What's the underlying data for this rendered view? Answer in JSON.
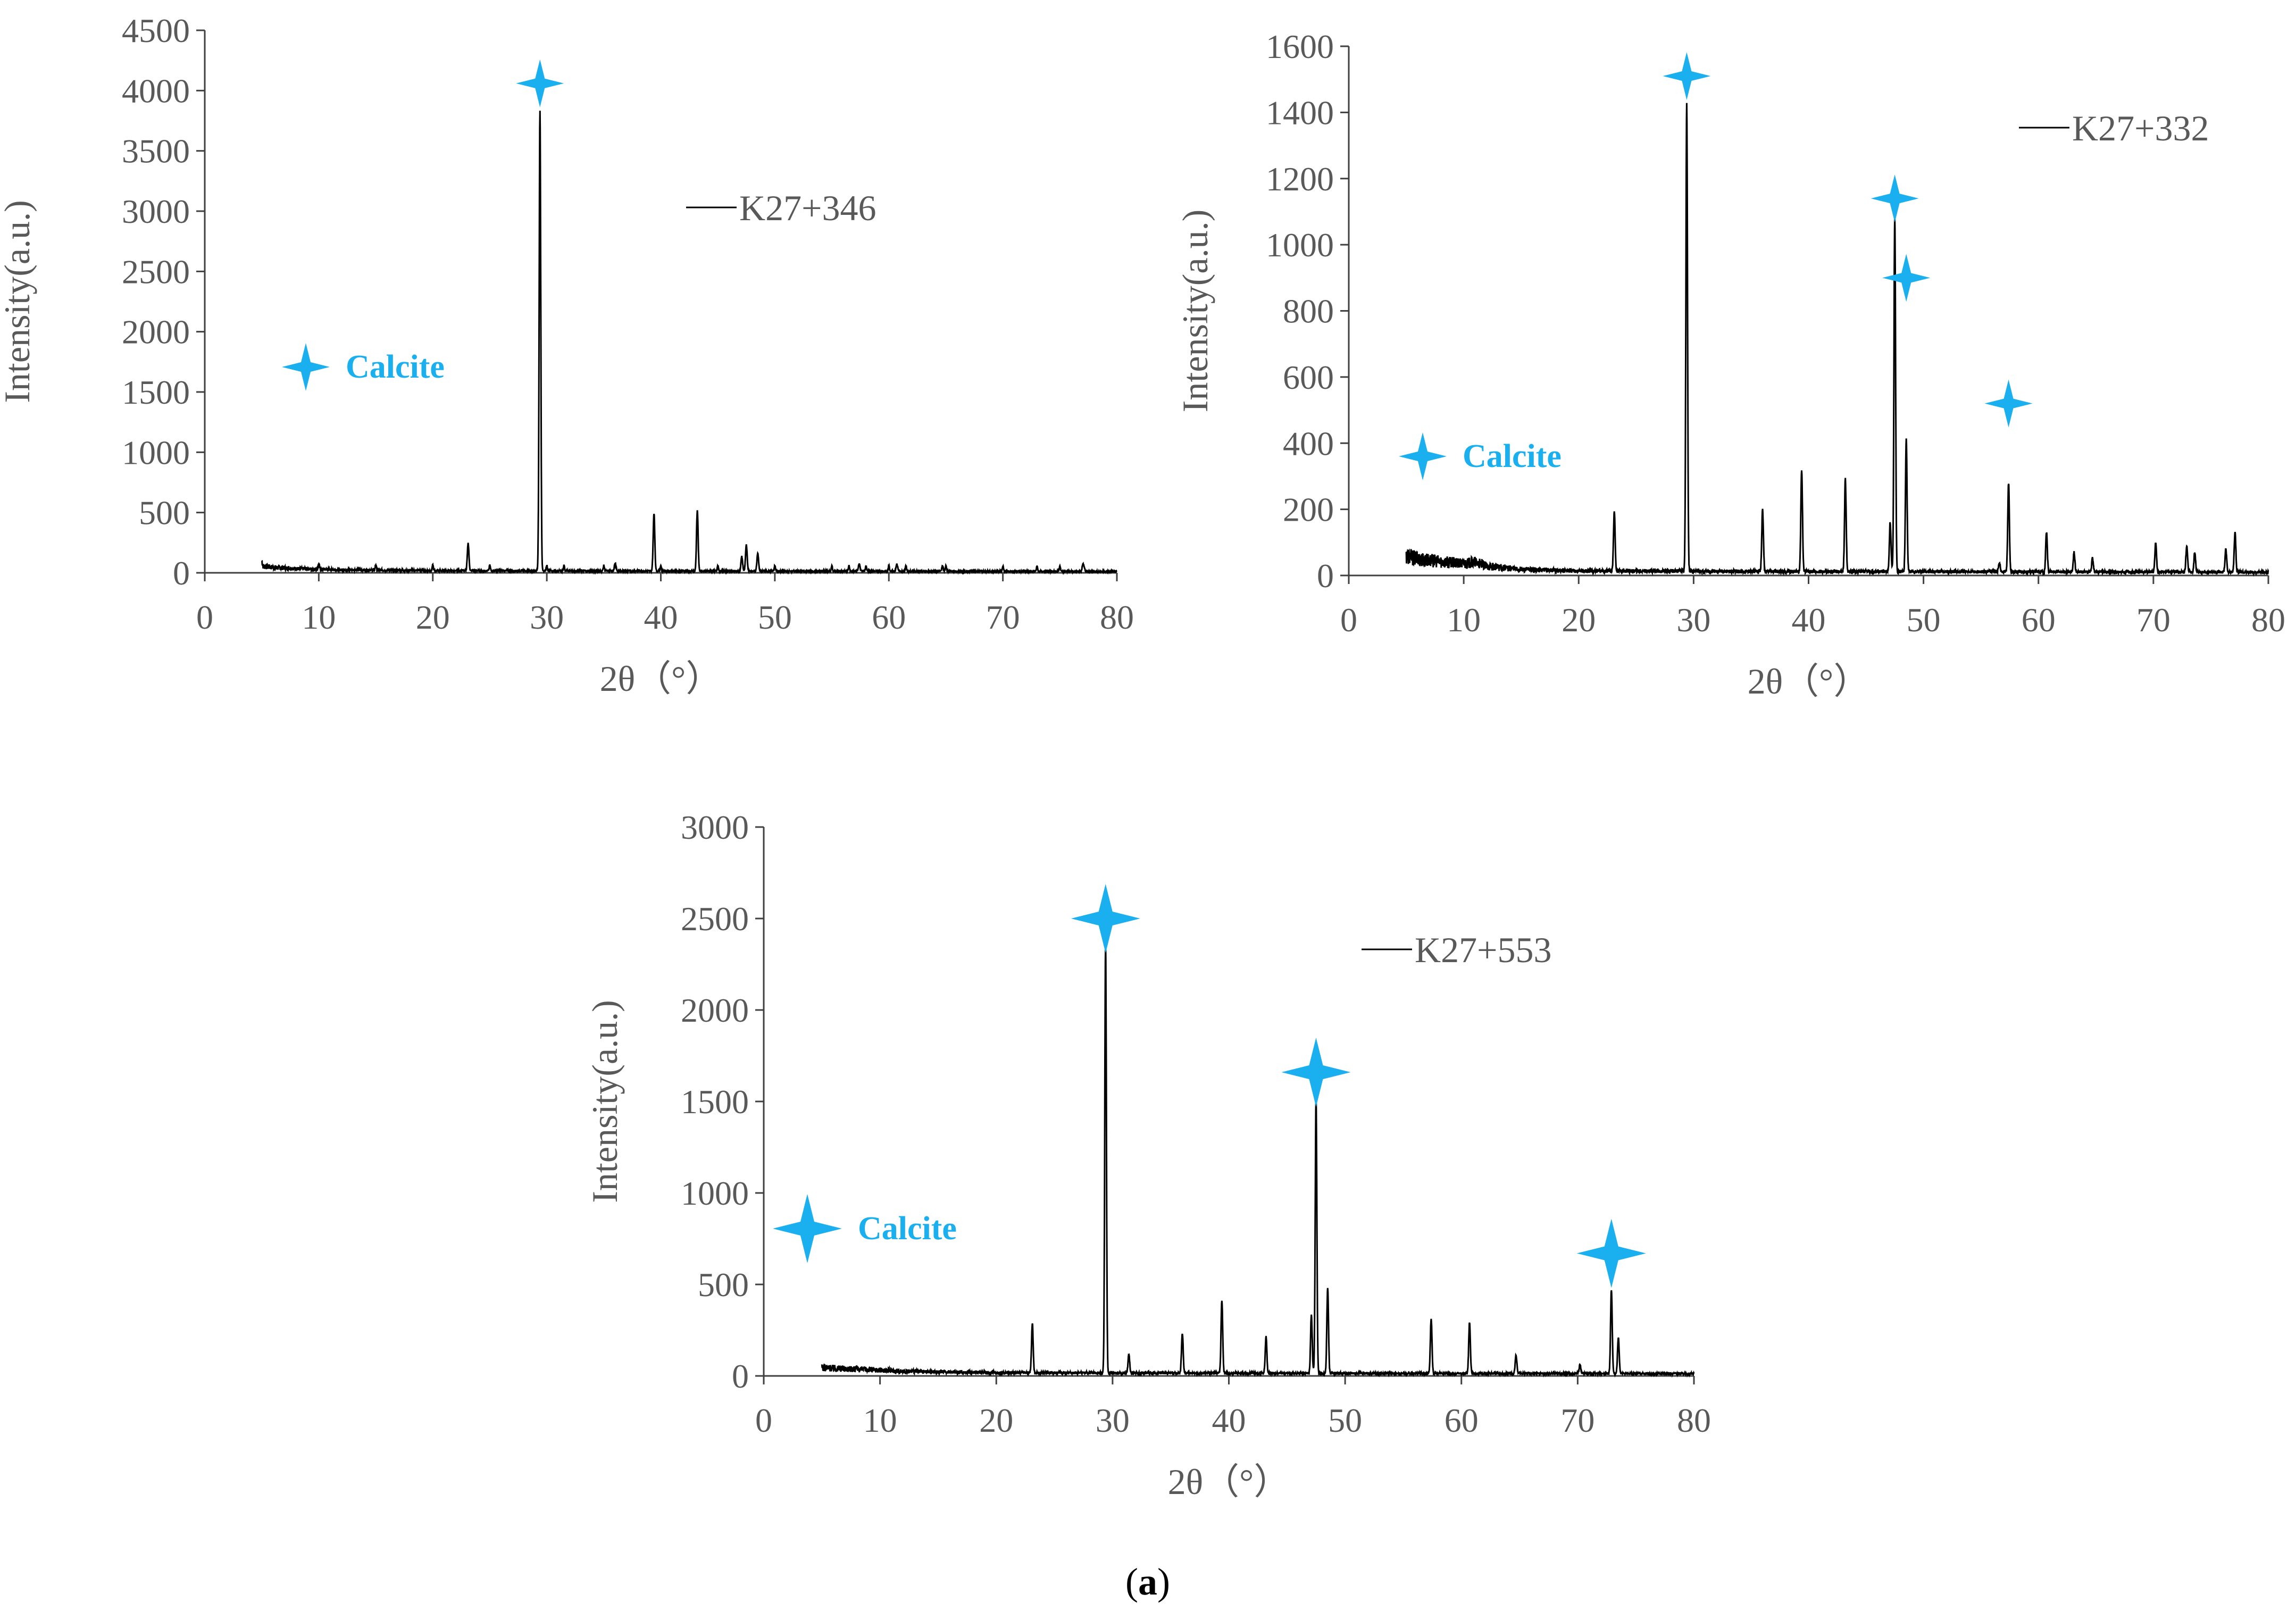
{
  "chart_data": [
    {
      "type": "line",
      "id": "k27-346",
      "series_name": "K27+346",
      "legend_label": "K27+346",
      "xlabel": "2θ（°）",
      "ylabel": "Intensity(a.u.)",
      "xlim": [
        0,
        80
      ],
      "ylim": [
        0,
        4500
      ],
      "xticks": [
        0,
        10,
        20,
        30,
        40,
        50,
        60,
        70,
        80
      ],
      "yticks": [
        0,
        500,
        1000,
        1500,
        2000,
        2500,
        3000,
        3500,
        4000,
        4500
      ],
      "scan_start": 5,
      "background": [
        [
          5,
          55
        ],
        [
          6,
          45
        ],
        [
          8,
          35
        ],
        [
          12,
          25
        ],
        [
          20,
          18
        ],
        [
          40,
          15
        ],
        [
          80,
          12
        ]
      ],
      "peaks": [
        [
          23.1,
          230
        ],
        [
          29.4,
          3820
        ],
        [
          36.0,
          60
        ],
        [
          39.4,
          480
        ],
        [
          43.2,
          500
        ],
        [
          47.1,
          120
        ],
        [
          47.5,
          220
        ],
        [
          48.5,
          150
        ],
        [
          57.4,
          60
        ],
        [
          60.7,
          60
        ],
        [
          64.7,
          40
        ],
        [
          77.1,
          40
        ]
      ],
      "minor_ticks_at": [
        5,
        10,
        15,
        20,
        25,
        30,
        31.5,
        35,
        40,
        45,
        50,
        55,
        56.5,
        58,
        60,
        61.5,
        65,
        70,
        73,
        75,
        77
      ],
      "calcite_markers": [
        [
          29.4,
          4060
        ]
      ],
      "calcite_legend_text": "Calcite",
      "calcite_color": "#1ab0f0"
    },
    {
      "type": "line",
      "id": "k27-332",
      "series_name": "K27+332",
      "legend_label": "K27+332",
      "xlabel": "2θ（°）",
      "ylabel": "Intensity(a.u.)",
      "xlim": [
        0,
        80
      ],
      "ylim": [
        0,
        1600
      ],
      "xticks": [
        0,
        10,
        20,
        30,
        40,
        50,
        60,
        70,
        80
      ],
      "yticks": [
        0,
        200,
        400,
        600,
        800,
        1000,
        1200,
        1400,
        1600
      ],
      "scan_start": 5,
      "background": [
        [
          5,
          60
        ],
        [
          6,
          50
        ],
        [
          8,
          42
        ],
        [
          10,
          35
        ],
        [
          11,
          40
        ],
        [
          12,
          28
        ],
        [
          15,
          18
        ],
        [
          20,
          14
        ],
        [
          40,
          12
        ],
        [
          80,
          10
        ]
      ],
      "peaks": [
        [
          23.1,
          180
        ],
        [
          29.4,
          1420
        ],
        [
          36.0,
          190
        ],
        [
          39.4,
          310
        ],
        [
          43.2,
          280
        ],
        [
          47.1,
          150
        ],
        [
          47.5,
          1080
        ],
        [
          48.5,
          400
        ],
        [
          56.6,
          30
        ],
        [
          57.4,
          270
        ],
        [
          60.7,
          120
        ],
        [
          63.1,
          60
        ],
        [
          64.7,
          40
        ],
        [
          70.2,
          90
        ],
        [
          72.9,
          80
        ],
        [
          73.6,
          60
        ],
        [
          76.3,
          70
        ],
        [
          77.1,
          120
        ]
      ],
      "minor_ticks_at": [],
      "calcite_markers": [
        [
          29.4,
          1510
        ],
        [
          47.5,
          1140
        ],
        [
          48.5,
          900
        ],
        [
          57.4,
          520
        ]
      ],
      "calcite_legend_text": "Calcite",
      "calcite_color": "#1ab0f0"
    },
    {
      "type": "line",
      "id": "k27-553",
      "series_name": "K27+553",
      "legend_label": "K27+553",
      "xlabel": "2θ（°）",
      "ylabel": "Intensity(a.u.)",
      "xlim": [
        0,
        80
      ],
      "ylim": [
        0,
        3000
      ],
      "xticks": [
        0,
        10,
        20,
        30,
        40,
        50,
        60,
        70,
        80
      ],
      "yticks": [
        0,
        500,
        1000,
        1500,
        2000,
        2500,
        3000
      ],
      "scan_start": 5,
      "background": [
        [
          5,
          45
        ],
        [
          7,
          40
        ],
        [
          10,
          32
        ],
        [
          12,
          25
        ],
        [
          20,
          18
        ],
        [
          40,
          15
        ],
        [
          80,
          12
        ]
      ],
      "peaks": [
        [
          23.1,
          270
        ],
        [
          29.4,
          2350
        ],
        [
          31.4,
          100
        ],
        [
          36.0,
          220
        ],
        [
          39.4,
          400
        ],
        [
          43.2,
          200
        ],
        [
          47.1,
          320
        ],
        [
          47.5,
          1500
        ],
        [
          48.5,
          470
        ],
        [
          57.4,
          300
        ],
        [
          60.7,
          280
        ],
        [
          64.7,
          100
        ],
        [
          70.2,
          50
        ],
        [
          72.9,
          460
        ],
        [
          73.5,
          200
        ]
      ],
      "minor_ticks_at": [],
      "calcite_markers": [
        [
          29.4,
          2500
        ],
        [
          47.5,
          1660
        ],
        [
          72.9,
          670
        ]
      ],
      "calcite_legend_text": "Calcite",
      "calcite_color": "#1ab0f0"
    }
  ],
  "caption": {
    "open": "(",
    "letter": "a",
    "close": ")"
  }
}
